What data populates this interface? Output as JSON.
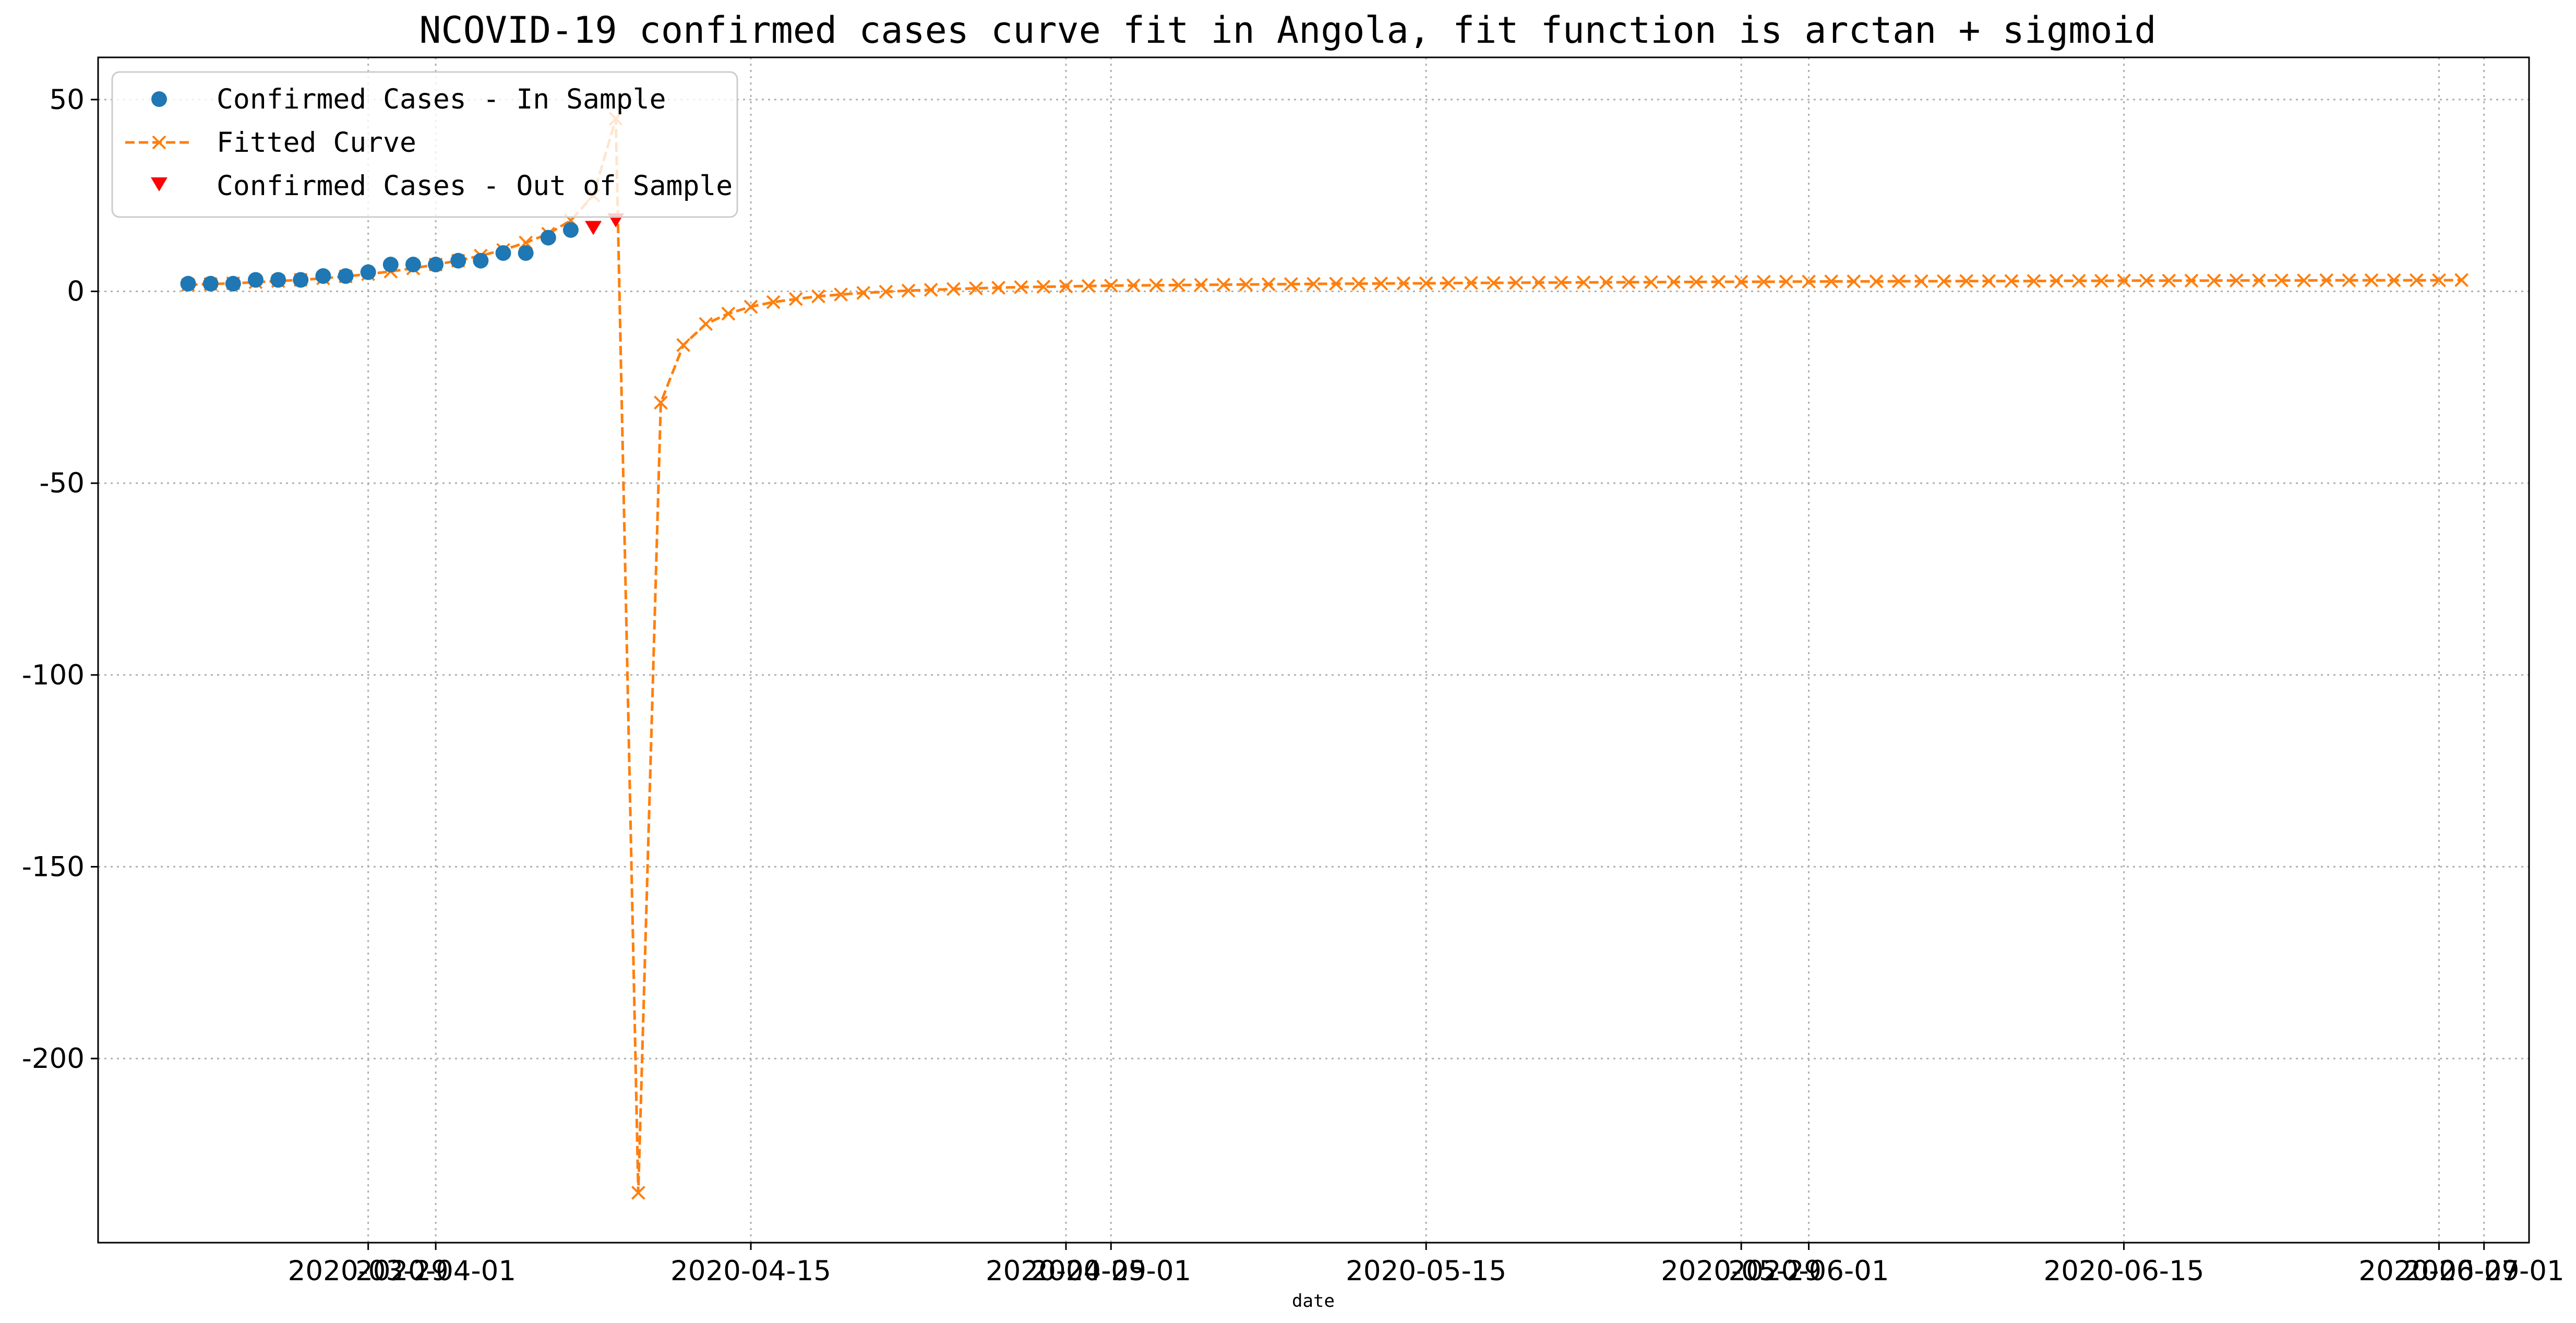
{
  "chart_data": {
    "type": "line",
    "title": "NCOVID-19 confirmed cases curve fit in Angola, fit function is arctan + sigmoid",
    "xlabel": "date",
    "ylabel": "",
    "xlim": [
      "2020-03-17",
      "2020-07-03"
    ],
    "ylim": [
      -248,
      61
    ],
    "grid": true,
    "legend_position": "top-left",
    "x_ticks": [
      "2020-03-29",
      "2020-04-01",
      "2020-04-15",
      "2020-04-29",
      "2020-05-01",
      "2020-05-15",
      "2020-05-29",
      "2020-06-01",
      "2020-06-15",
      "2020-06-29",
      "2020-07-01"
    ],
    "y_ticks": [
      50,
      0,
      -50,
      -100,
      -150,
      -200
    ],
    "series": [
      {
        "name": "Confirmed Cases - In Sample",
        "marker": "circle",
        "color": "#1f77b4",
        "start_date": "2020-03-21",
        "values": [
          2,
          2,
          2,
          3,
          3,
          3,
          4,
          4,
          5,
          7,
          7,
          7,
          8,
          8,
          10,
          10,
          14,
          16
        ]
      },
      {
        "name": "Fitted Curve",
        "marker": "x",
        "linestyle": "dashed",
        "color": "#ff7f0e",
        "start_date": "2020-03-21",
        "values": [
          1.7,
          1.9,
          2.1,
          2.4,
          2.7,
          3.0,
          3.4,
          3.9,
          4.5,
          5.2,
          6.0,
          7.0,
          8.0,
          9.3,
          10.8,
          12.7,
          15.0,
          18.5,
          25,
          45,
          -235,
          -29,
          -14,
          -8.5,
          -5.8,
          -4.0,
          -2.8,
          -2.0,
          -1.3,
          -0.8,
          -0.4,
          -0.1,
          0.2,
          0.4,
          0.6,
          0.8,
          0.95,
          1.1,
          1.2,
          1.3,
          1.4,
          1.5,
          1.55,
          1.6,
          1.65,
          1.7,
          1.75,
          1.8,
          1.85,
          1.9,
          1.95,
          2.0,
          2.0,
          2.05,
          2.1,
          2.1,
          2.15,
          2.2,
          2.2,
          2.25,
          2.3,
          2.3,
          2.35,
          2.35,
          2.4,
          2.4,
          2.45,
          2.45,
          2.5,
          2.5,
          2.5,
          2.55,
          2.55,
          2.6,
          2.6,
          2.6,
          2.65,
          2.65,
          2.65,
          2.7,
          2.7,
          2.7,
          2.7,
          2.75,
          2.75,
          2.75,
          2.8,
          2.8,
          2.8,
          2.8,
          2.8,
          2.85,
          2.85,
          2.85,
          2.85,
          2.9,
          2.9,
          2.9,
          2.9,
          2.9,
          2.9,
          2.95
        ]
      },
      {
        "name": "Confirmed Cases - Out of Sample",
        "marker": "triangle-down",
        "color": "#ff0000",
        "start_date": "2020-04-08",
        "values": [
          17,
          19
        ]
      }
    ]
  }
}
